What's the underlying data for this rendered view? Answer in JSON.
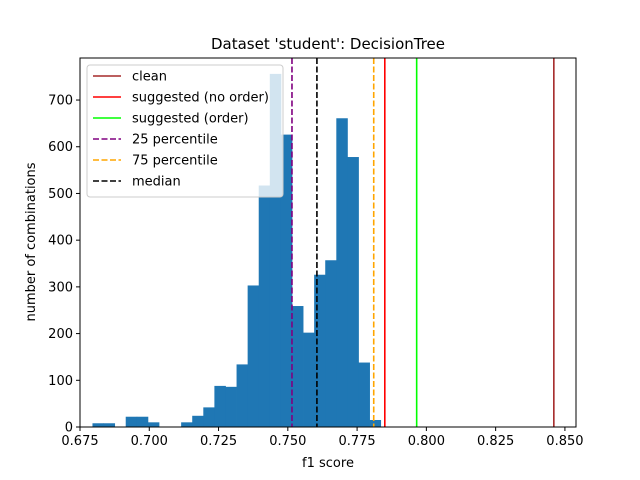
{
  "chart_data": {
    "type": "bar",
    "title": "Dataset 'student': DecisionTree",
    "xlabel": "f1 score",
    "ylabel": "number of combinations",
    "xlim": [
      0.675,
      0.854
    ],
    "ylim": [
      0,
      790
    ],
    "xticks": [
      0.675,
      0.7,
      0.725,
      0.75,
      0.775,
      0.8,
      0.825,
      0.85
    ],
    "xtick_labels": [
      "0.675",
      "0.700",
      "0.725",
      "0.750",
      "0.775",
      "0.800",
      "0.825",
      "0.850"
    ],
    "yticks": [
      0,
      100,
      200,
      300,
      400,
      500,
      600,
      700
    ],
    "ytick_labels": [
      "0",
      "100",
      "200",
      "300",
      "400",
      "500",
      "600",
      "700"
    ],
    "bar_color": "#1f77b4",
    "histogram": {
      "bin_start": 0.6795,
      "bin_width": 0.004,
      "counts": [
        8,
        8,
        0,
        22,
        22,
        10,
        0,
        0,
        10,
        24,
        42,
        88,
        86,
        134,
        303,
        517,
        756,
        626,
        259,
        202,
        326,
        357,
        661,
        578,
        138,
        15
      ]
    },
    "reference_lines": [
      {
        "name": "clean",
        "x": 0.846,
        "color": "#a52a2a",
        "style": "solid"
      },
      {
        "name": "suggested (no order)",
        "x": 0.785,
        "color": "#ff0000",
        "style": "solid"
      },
      {
        "name": "suggested (order)",
        "x": 0.7965,
        "color": "#00ff00",
        "style": "solid"
      },
      {
        "name": "25 percentile",
        "x": 0.7515,
        "color": "#800080",
        "style": "dashed"
      },
      {
        "name": "75 percentile",
        "x": 0.781,
        "color": "#ffa500",
        "style": "dashed"
      },
      {
        "name": "median",
        "x": 0.7605,
        "color": "#000000",
        "style": "dashed"
      }
    ],
    "legend_position": "top-left"
  }
}
